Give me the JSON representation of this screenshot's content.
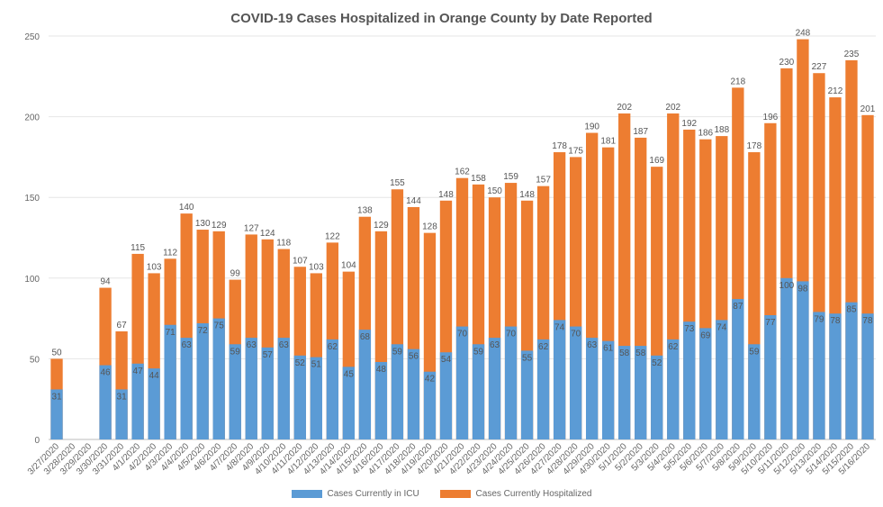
{
  "chart_data": {
    "type": "bar",
    "title": "COVID-19 Cases Hospitalized in Orange County by Date Reported",
    "xlabel": "",
    "ylabel": "",
    "ylim": [
      0,
      250
    ],
    "yticks": [
      "0",
      "50",
      "100",
      "150",
      "200",
      "250"
    ],
    "grid": true,
    "legend_position": "bottom",
    "categories": [
      "3/27/2020",
      "3/28/2020",
      "3/29/2020",
      "3/30/2020",
      "3/31/2020",
      "4/1/2020",
      "4/2/2020",
      "4/3/2020",
      "4/4/2020",
      "4/5/2020",
      "4/6/2020",
      "4/7/2020",
      "4/8/2020",
      "4/9/2020",
      "4/10/2020",
      "4/11/2020",
      "4/12/2020",
      "4/13/2020",
      "4/14/2020",
      "4/15/2020",
      "4/16/2020",
      "4/17/2020",
      "4/18/2020",
      "4/19/2020",
      "4/20/2020",
      "4/21/2020",
      "4/22/2020",
      "4/23/2020",
      "4/24/2020",
      "4/25/2020",
      "4/26/2020",
      "4/27/2020",
      "4/28/2020",
      "4/29/2020",
      "4/30/2020",
      "5/1/2020",
      "5/2/2020",
      "5/3/2020",
      "5/4/2020",
      "5/5/2020",
      "5/6/2020",
      "5/7/2020",
      "5/8/2020",
      "5/9/2020",
      "5/10/2020",
      "5/11/2020",
      "5/12/2020",
      "5/13/2020",
      "5/14/2020",
      "5/15/2020",
      "5/16/2020"
    ],
    "series": [
      {
        "name": "Cases Currently in ICU",
        "color": "#5b9bd5",
        "values": [
          31,
          null,
          null,
          46,
          31,
          47,
          44,
          71,
          63,
          72,
          75,
          59,
          63,
          57,
          63,
          52,
          51,
          62,
          45,
          68,
          48,
          59,
          56,
          42,
          54,
          70,
          59,
          63,
          70,
          55,
          62,
          74,
          70,
          63,
          61,
          58,
          58,
          52,
          62,
          73,
          69,
          74,
          87,
          59,
          77,
          100,
          98,
          79,
          78,
          85,
          78
        ]
      },
      {
        "name": "Cases Currently Hospitalized",
        "color": "#ed7d31",
        "values": [
          50,
          null,
          null,
          94,
          67,
          115,
          103,
          112,
          140,
          130,
          129,
          99,
          127,
          124,
          118,
          107,
          103,
          122,
          104,
          138,
          129,
          155,
          144,
          128,
          148,
          162,
          158,
          150,
          159,
          148,
          157,
          178,
          175,
          190,
          181,
          202,
          187,
          169,
          202,
          192,
          186,
          188,
          218,
          178,
          196,
          230,
          248,
          227,
          212,
          235,
          201
        ]
      }
    ]
  }
}
